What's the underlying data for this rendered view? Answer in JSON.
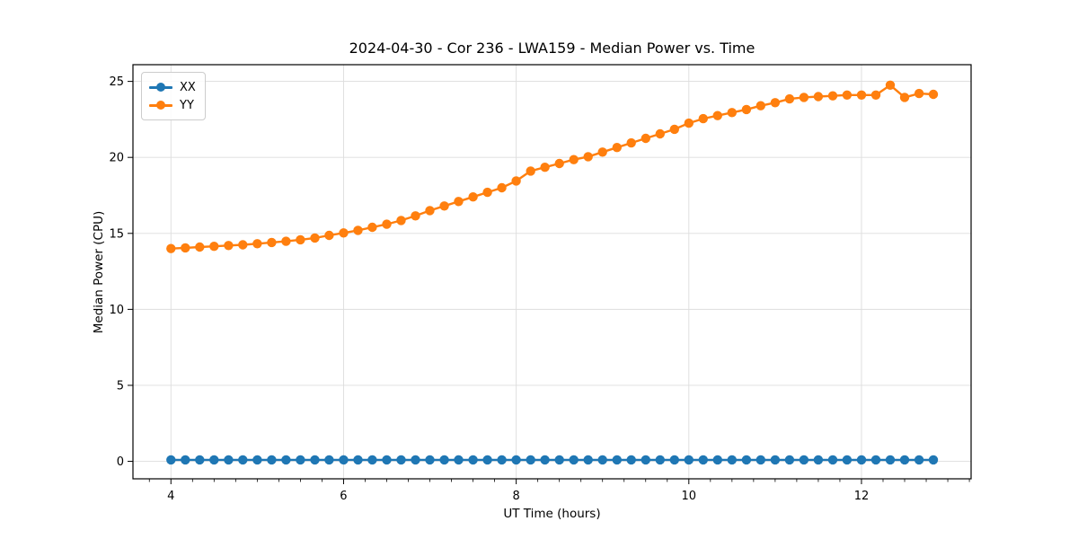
{
  "figure": {
    "background": "#ffffff",
    "text_color": "#000000"
  },
  "chart_data": {
    "type": "line",
    "title": "2024-04-30 - Cor 236 - LWA159 - Median Power vs. Time",
    "xlabel": "UT Time (hours)",
    "ylabel": "Median Power (CPU)",
    "xlim": [
      3.56,
      13.27
    ],
    "ylim": [
      -1.15,
      26.1
    ],
    "xticks": [
      4,
      6,
      8,
      10,
      12
    ],
    "yticks": [
      0,
      5,
      10,
      15,
      20,
      25
    ],
    "x_minor_step": 0.25,
    "grid": true,
    "grid_color": "#dddddd",
    "spine_color": "#000000",
    "legend": {
      "position": "upper left"
    },
    "x": [
      4.0,
      4.167,
      4.333,
      4.5,
      4.667,
      4.833,
      5.0,
      5.167,
      5.333,
      5.5,
      5.667,
      5.833,
      6.0,
      6.167,
      6.333,
      6.5,
      6.667,
      6.833,
      7.0,
      7.167,
      7.333,
      7.5,
      7.667,
      7.833,
      8.0,
      8.167,
      8.333,
      8.5,
      8.667,
      8.833,
      9.0,
      9.167,
      9.333,
      9.5,
      9.667,
      9.833,
      10.0,
      10.167,
      10.333,
      10.5,
      10.667,
      10.833,
      11.0,
      11.167,
      11.333,
      11.5,
      11.667,
      11.833,
      12.0,
      12.167,
      12.333,
      12.5,
      12.667,
      12.833
    ],
    "series": [
      {
        "name": "XX",
        "color": "#1f77b4",
        "values": [
          0.1,
          0.1,
          0.1,
          0.1,
          0.1,
          0.1,
          0.1,
          0.1,
          0.1,
          0.1,
          0.1,
          0.1,
          0.1,
          0.1,
          0.1,
          0.1,
          0.1,
          0.1,
          0.1,
          0.1,
          0.1,
          0.1,
          0.1,
          0.1,
          0.1,
          0.1,
          0.1,
          0.1,
          0.1,
          0.1,
          0.1,
          0.1,
          0.1,
          0.1,
          0.1,
          0.1,
          0.1,
          0.1,
          0.1,
          0.1,
          0.1,
          0.1,
          0.1,
          0.1,
          0.1,
          0.1,
          0.1,
          0.1,
          0.1,
          0.1,
          0.1,
          0.1,
          0.1,
          0.1
        ]
      },
      {
        "name": "YY",
        "color": "#ff7f0e",
        "values": [
          14.0,
          14.05,
          14.1,
          14.15,
          14.2,
          14.25,
          14.32,
          14.4,
          14.48,
          14.58,
          14.7,
          14.87,
          15.03,
          15.2,
          15.4,
          15.6,
          15.85,
          16.15,
          16.5,
          16.8,
          17.1,
          17.4,
          17.7,
          18.0,
          18.45,
          19.1,
          19.35,
          19.6,
          19.85,
          20.05,
          20.35,
          20.65,
          20.95,
          21.25,
          21.55,
          21.85,
          22.25,
          22.55,
          22.75,
          22.95,
          23.15,
          23.4,
          23.6,
          23.85,
          23.95,
          24.0,
          24.05,
          24.1,
          24.1,
          24.1,
          24.75,
          23.95,
          24.2,
          24.15
        ]
      }
    ]
  }
}
